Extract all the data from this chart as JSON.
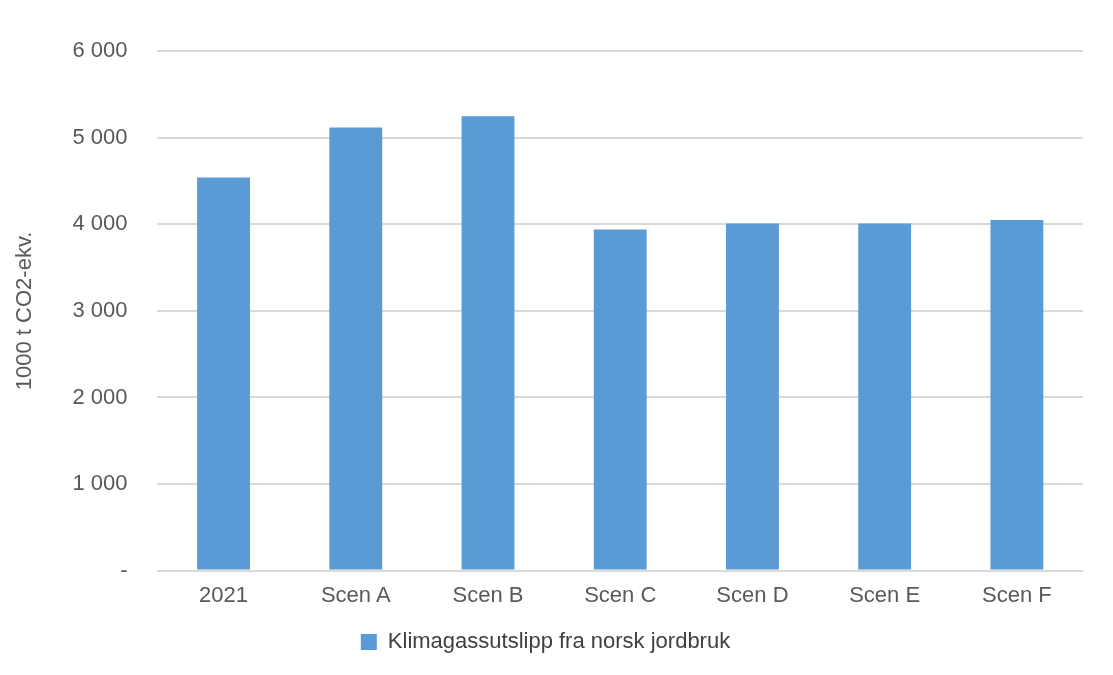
{
  "chart_data": {
    "type": "bar",
    "ylabel": "1000 t CO2-ekv.",
    "categories": [
      "2021",
      "Scen A",
      "Scen B",
      "Scen C",
      "Scen D",
      "Scen E",
      "Scen F"
    ],
    "series": [
      {
        "name": "Klimagassutslipp fra norsk jordbruk",
        "color": "#5b9bd5",
        "values": [
          4540,
          5120,
          5250,
          3940,
          4010,
          4010,
          4050
        ]
      }
    ],
    "ylim": [
      0,
      6000
    ],
    "yticks": [
      {
        "value": 0,
        "label": "-"
      },
      {
        "value": 1000,
        "label": "1 000"
      },
      {
        "value": 2000,
        "label": "2 000"
      },
      {
        "value": 3000,
        "label": "3 000"
      },
      {
        "value": 4000,
        "label": "4 000"
      },
      {
        "value": 5000,
        "label": "5 000"
      },
      {
        "value": 6000,
        "label": "6 000"
      }
    ],
    "grid": "y",
    "legend": "bottom"
  }
}
